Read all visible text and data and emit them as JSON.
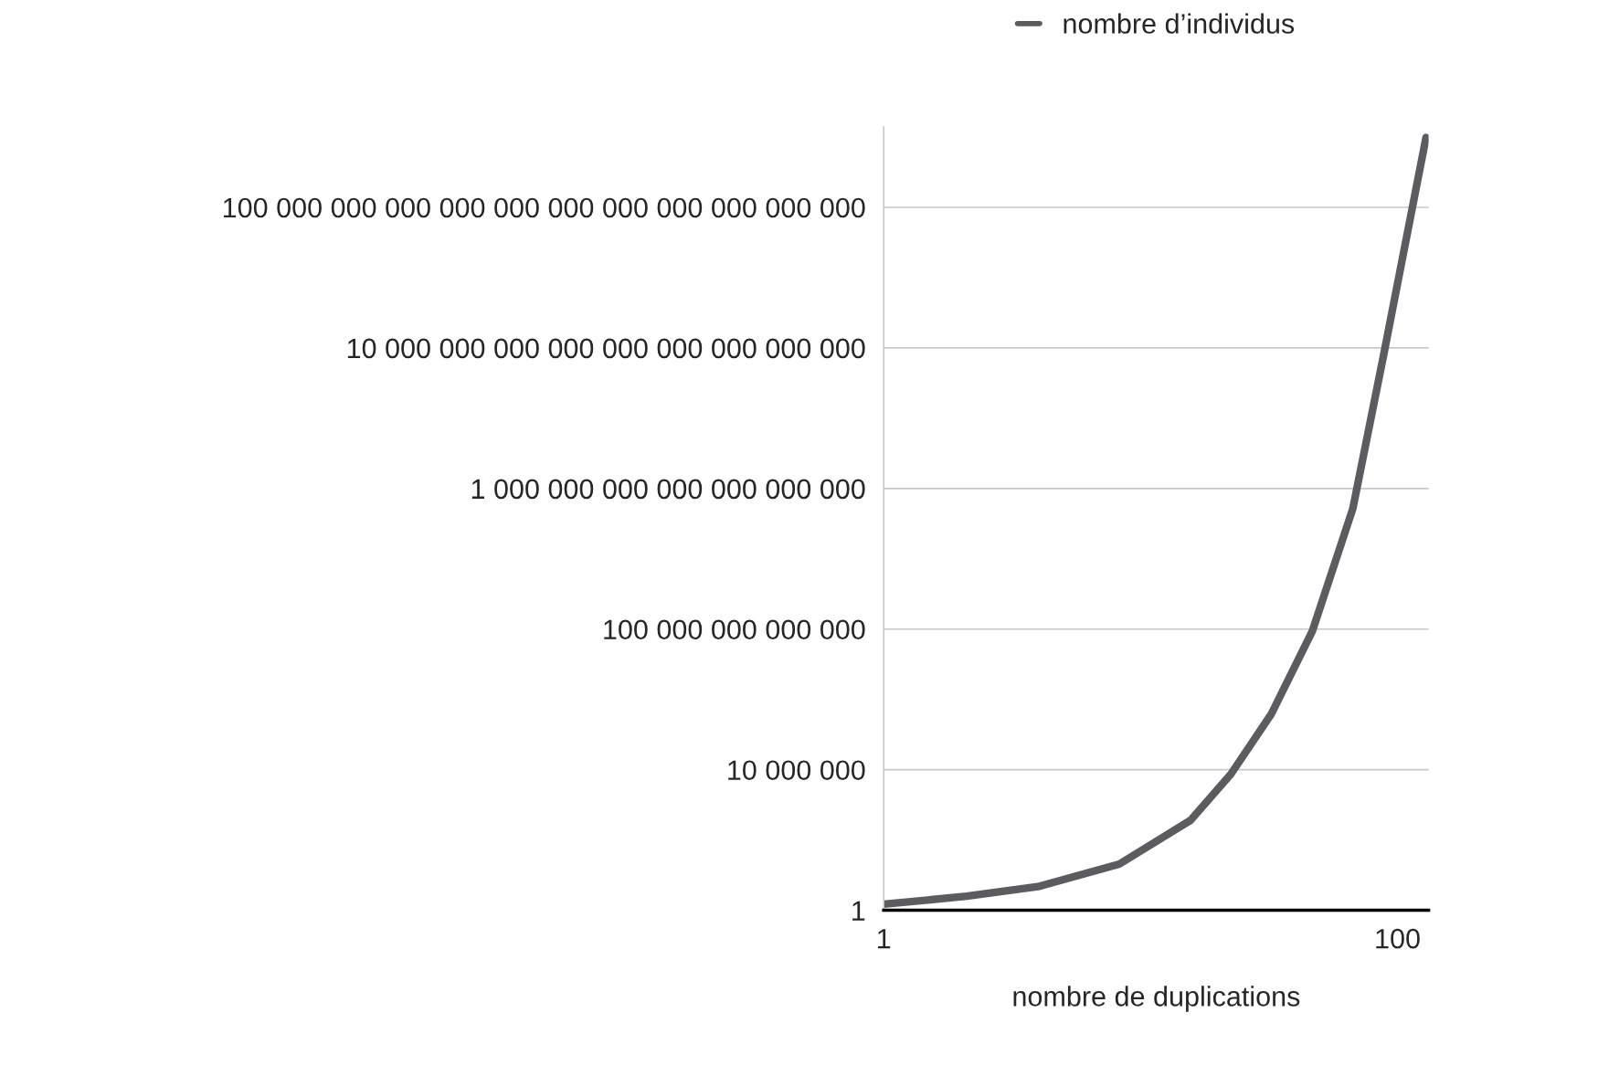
{
  "chart_data": {
    "type": "line",
    "xlabel": "nombre de duplications",
    "x": [
      1,
      17,
      30.7,
      46.4,
      60.1,
      67.9,
      75.7,
      83.6,
      91.4,
      97.3,
      105.5
    ],
    "series": [
      {
        "name": "nombre d’individus",
        "color": "#5a5c60",
        "values": [
          2,
          5,
          15,
          200,
          30000.0,
          6000000.0,
          6000000000.0,
          80000000000000.0,
          1e+20,
          4e+27,
          3e+38
        ]
      }
    ],
    "log": "y",
    "xlim": [
      1,
      106
    ],
    "xticks": [
      1,
      100
    ],
    "ylim": [
      1,
      1e+39
    ],
    "yticks": [
      1,
      {
        "value": 10000000.0,
        "label": "10 000 000"
      },
      {
        "value": 100000000000000.0,
        "label": "100 000 000 000 000"
      },
      {
        "value": 1e+21,
        "label": "1 000 000 000 000 000 000 000"
      },
      {
        "value": 1e+28,
        "label": "10 000 000 000 000 000 000 000 000 000"
      },
      {
        "value": 1e+35,
        "label": "100 000 000 000 000 000 000 000 000 000 000 000"
      }
    ],
    "grid": "y",
    "legend": "top",
    "marker": "none",
    "line_style": "solid"
  }
}
